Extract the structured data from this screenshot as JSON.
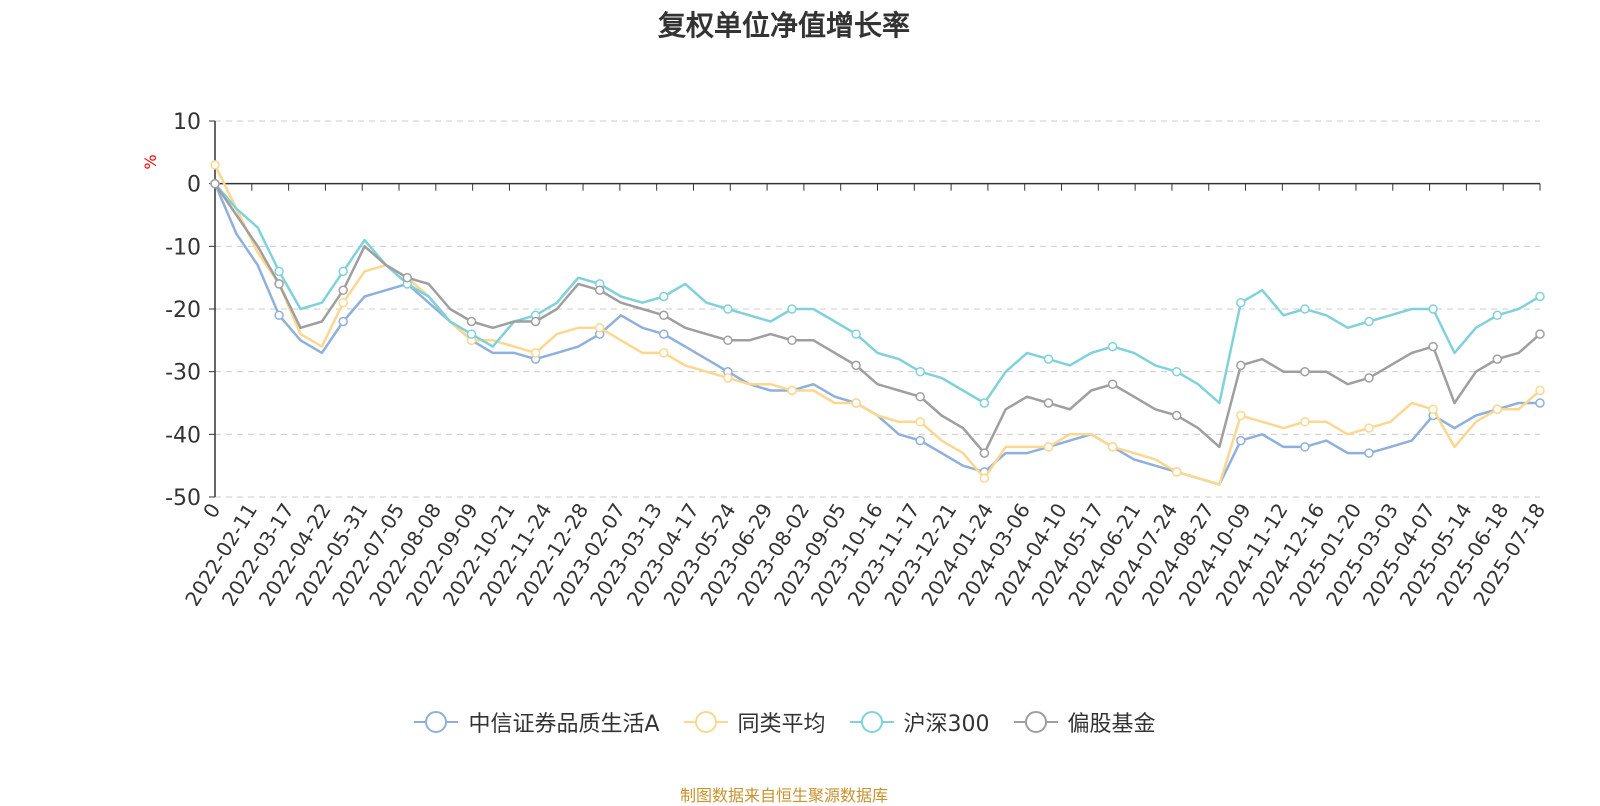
{
  "chart_data": {
    "type": "line",
    "title": "复权单位净值增长率",
    "ylabel": "%",
    "ylim": [
      -50,
      10
    ],
    "yticks": [
      10,
      0,
      -10,
      -20,
      -30,
      -40,
      -50
    ],
    "x_tick_labels": [
      "0",
      "2022-02-11",
      "2022-03-17",
      "2022-04-22",
      "2022-05-31",
      "2022-07-05",
      "2022-08-08",
      "2022-09-09",
      "2022-10-21",
      "2022-11-24",
      "2022-12-28",
      "2023-02-07",
      "2023-03-13",
      "2023-04-17",
      "2023-05-24",
      "2023-06-29",
      "2023-08-02",
      "2023-09-05",
      "2023-10-16",
      "2023-11-17",
      "2023-12-21",
      "2024-01-24",
      "2024-03-06",
      "2024-04-10",
      "2024-05-17",
      "2024-06-21",
      "2024-07-24",
      "2024-08-27",
      "2024-10-09",
      "2024-11-12",
      "2024-12-16",
      "2025-01-20",
      "2025-03-03",
      "2025-04-07",
      "2025-05-14",
      "2025-06-18",
      "2025-07-18"
    ],
    "grid": "horizontal dashed",
    "legend_position": "bottom",
    "series": [
      {
        "name": "中信证券品质生活A",
        "color": "#8fb0dc",
        "values": [
          0,
          -8,
          -13,
          -21,
          -25,
          -27,
          -22,
          -18,
          -17,
          -16,
          -19,
          -22,
          -25,
          -27,
          -27,
          -28,
          -27,
          -26,
          -24,
          -21,
          -23,
          -24,
          -26,
          -28,
          -30,
          -32,
          -33,
          -33,
          -32,
          -34,
          -35,
          -37,
          -40,
          -41,
          -43,
          -45,
          -46,
          -43,
          -43,
          -42,
          -41,
          -40,
          -42,
          -44,
          -45,
          -46,
          -47,
          -48,
          -41,
          -40,
          -42,
          -42,
          -41,
          -43,
          -43,
          -42,
          -41,
          -37,
          -39,
          -37,
          -36,
          -35,
          -35
        ]
      },
      {
        "name": "同类平均",
        "color": "#fcd78f",
        "values": [
          3,
          -4,
          -11,
          -16,
          -24,
          -26,
          -19,
          -14,
          -13,
          -15,
          -18,
          -22,
          -25,
          -25,
          -26,
          -27,
          -24,
          -23,
          -23,
          -25,
          -27,
          -27,
          -29,
          -30,
          -31,
          -32,
          -32,
          -33,
          -33,
          -35,
          -35,
          -37,
          -38,
          -38,
          -41,
          -43,
          -47,
          -42,
          -42,
          -42,
          -40,
          -40,
          -42,
          -43,
          -44,
          -46,
          -47,
          -48,
          -37,
          -38,
          -39,
          -38,
          -38,
          -40,
          -39,
          -38,
          -35,
          -36,
          -42,
          -38,
          -36,
          -36,
          -33
        ]
      },
      {
        "name": "沪深300",
        "color": "#80d2da",
        "values": [
          0,
          -4,
          -7,
          -14,
          -20,
          -19,
          -14,
          -9,
          -13,
          -16,
          -18,
          -22,
          -24,
          -26,
          -22,
          -21,
          -19,
          -15,
          -16,
          -18,
          -19,
          -18,
          -16,
          -19,
          -20,
          -21,
          -22,
          -20,
          -20,
          -22,
          -24,
          -27,
          -28,
          -30,
          -31,
          -33,
          -35,
          -30,
          -27,
          -28,
          -29,
          -27,
          -26,
          -27,
          -29,
          -30,
          -32,
          -35,
          -19,
          -17,
          -21,
          -20,
          -21,
          -23,
          -22,
          -21,
          -20,
          -20,
          -27,
          -23,
          -21,
          -20,
          -18
        ]
      },
      {
        "name": "偏股基金",
        "color": "#9f9f9f",
        "values": [
          0,
          -5,
          -10,
          -16,
          -23,
          -22,
          -17,
          -10,
          -13,
          -15,
          -16,
          -20,
          -22,
          -23,
          -22,
          -22,
          -20,
          -16,
          -17,
          -19,
          -20,
          -21,
          -23,
          -24,
          -25,
          -25,
          -24,
          -25,
          -25,
          -27,
          -29,
          -32,
          -33,
          -34,
          -37,
          -39,
          -43,
          -36,
          -34,
          -35,
          -36,
          -33,
          -32,
          -34,
          -36,
          -37,
          -39,
          -42,
          -29,
          -28,
          -30,
          -30,
          -30,
          -32,
          -31,
          -29,
          -27,
          -26,
          -35,
          -30,
          -28,
          -27,
          -24
        ]
      }
    ]
  },
  "footer": {
    "source": "制图数据来自恒生聚源数据库"
  }
}
